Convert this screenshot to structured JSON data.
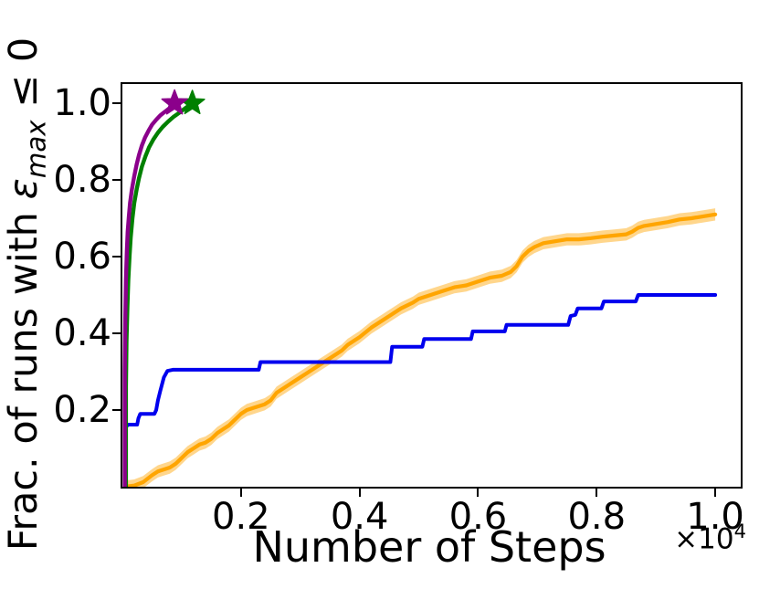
{
  "labels": {
    "ylabel_prefix": "Frac. of runs with ",
    "ylabel_symbol": "ε",
    "ylabel_subscript": "max",
    "ylabel_suffix": " ≤ 0",
    "xlabel": "Number of Steps",
    "offset_base": "×10",
    "offset_exp": "4"
  },
  "axes": {
    "x_tick_labels": [
      "0.2",
      "0.4",
      "0.6",
      "0.8",
      "1.0"
    ],
    "y_tick_labels": [
      "0.2",
      "0.4",
      "0.6",
      "0.8",
      "1.0"
    ]
  },
  "colors": {
    "purple": "#8b008b",
    "green": "#008000",
    "blue": "#0000ee",
    "orange": "#ffa500",
    "axis": "#000000"
  },
  "chart_data": {
    "type": "line",
    "title": "",
    "xlabel": "Number of Steps (×10⁴)",
    "ylabel": "Frac. of runs with ε_max ≤ 0",
    "xlim": [
      0,
      1.043
    ],
    "ylim": [
      0,
      1.05
    ],
    "x_ticks": [
      0.2,
      0.4,
      0.6,
      0.8,
      1.0
    ],
    "y_ticks": [
      0.2,
      0.4,
      0.6,
      0.8,
      1.0
    ],
    "grid": false,
    "legend": "none",
    "x_units": "steps ×10^4",
    "series": [
      {
        "name": "orange",
        "color": "#ffa500",
        "linewidth": 4.2,
        "band_halfwidth": 0.016,
        "band_opacity": 0.45,
        "x": [
          0.005,
          0.02,
          0.035,
          0.05,
          0.06,
          0.07,
          0.08,
          0.09,
          0.1,
          0.11,
          0.12,
          0.13,
          0.14,
          0.15,
          0.16,
          0.17,
          0.18,
          0.2,
          0.21,
          0.22,
          0.24,
          0.25,
          0.26,
          0.28,
          0.3,
          0.31,
          0.33,
          0.35,
          0.37,
          0.38,
          0.4,
          0.42,
          0.44,
          0.45,
          0.47,
          0.49,
          0.5,
          0.52,
          0.54,
          0.56,
          0.58,
          0.6,
          0.62,
          0.64,
          0.655,
          0.665,
          0.675,
          0.685,
          0.695,
          0.71,
          0.73,
          0.75,
          0.77,
          0.79,
          0.81,
          0.83,
          0.85,
          0.86,
          0.87,
          0.88,
          0.9,
          0.92,
          0.94,
          0.96,
          0.98,
          1.0
        ],
        "y": [
          0.0,
          0.003,
          0.012,
          0.03,
          0.04,
          0.045,
          0.05,
          0.06,
          0.075,
          0.09,
          0.1,
          0.11,
          0.115,
          0.125,
          0.14,
          0.15,
          0.16,
          0.19,
          0.2,
          0.205,
          0.215,
          0.225,
          0.245,
          0.265,
          0.285,
          0.295,
          0.315,
          0.335,
          0.355,
          0.37,
          0.39,
          0.415,
          0.435,
          0.445,
          0.465,
          0.48,
          0.49,
          0.5,
          0.51,
          0.52,
          0.525,
          0.535,
          0.545,
          0.55,
          0.56,
          0.575,
          0.6,
          0.615,
          0.625,
          0.635,
          0.64,
          0.645,
          0.645,
          0.648,
          0.652,
          0.655,
          0.658,
          0.665,
          0.675,
          0.68,
          0.685,
          0.69,
          0.697,
          0.7,
          0.705,
          0.71
        ]
      },
      {
        "name": "blue",
        "color": "#0000ee",
        "linewidth": 4.0,
        "x": [
          0.005,
          0.005,
          0.01,
          0.025,
          0.027,
          0.03,
          0.054,
          0.057,
          0.06,
          0.064,
          0.07,
          0.076,
          0.085,
          0.23,
          0.233,
          0.452,
          0.455,
          0.506,
          0.509,
          0.588,
          0.591,
          0.645,
          0.648,
          0.752,
          0.756,
          0.764,
          0.768,
          0.808,
          0.812,
          0.866,
          0.87,
          1.0
        ],
        "y": [
          0.01,
          0.155,
          0.162,
          0.162,
          0.178,
          0.19,
          0.19,
          0.2,
          0.225,
          0.25,
          0.285,
          0.302,
          0.305,
          0.305,
          0.325,
          0.325,
          0.365,
          0.365,
          0.385,
          0.385,
          0.405,
          0.405,
          0.422,
          0.422,
          0.445,
          0.448,
          0.465,
          0.465,
          0.483,
          0.483,
          0.5,
          0.5
        ]
      },
      {
        "name": "green",
        "color": "#008000",
        "linewidth": 4.4,
        "marker": "star",
        "marker_at": [
          0.118,
          1.0
        ],
        "marker_size": 14,
        "x": [
          0.006,
          0.006,
          0.007,
          0.0085,
          0.01,
          0.012,
          0.014,
          0.017,
          0.02,
          0.024,
          0.028,
          0.033,
          0.039,
          0.045,
          0.052,
          0.06,
          0.068,
          0.077,
          0.086,
          0.096,
          0.107,
          0.118
        ],
        "y": [
          0.0,
          0.26,
          0.38,
          0.47,
          0.54,
          0.6,
          0.65,
          0.7,
          0.74,
          0.775,
          0.805,
          0.835,
          0.862,
          0.885,
          0.905,
          0.923,
          0.938,
          0.952,
          0.964,
          0.975,
          0.988,
          1.0
        ]
      },
      {
        "name": "purple",
        "color": "#8b008b",
        "linewidth": 4.4,
        "marker": "star",
        "marker_at": [
          0.088,
          1.0
        ],
        "marker_size": 14.5,
        "x": [
          0.004,
          0.004,
          0.005,
          0.006,
          0.0075,
          0.009,
          0.011,
          0.013,
          0.016,
          0.02,
          0.024,
          0.028,
          0.033,
          0.038,
          0.044,
          0.05,
          0.057,
          0.064,
          0.071,
          0.078,
          0.084,
          0.088
        ],
        "y": [
          0.0,
          0.3,
          0.44,
          0.54,
          0.615,
          0.665,
          0.705,
          0.74,
          0.775,
          0.81,
          0.84,
          0.865,
          0.89,
          0.91,
          0.928,
          0.944,
          0.957,
          0.968,
          0.977,
          0.985,
          0.993,
          1.0
        ]
      }
    ]
  }
}
